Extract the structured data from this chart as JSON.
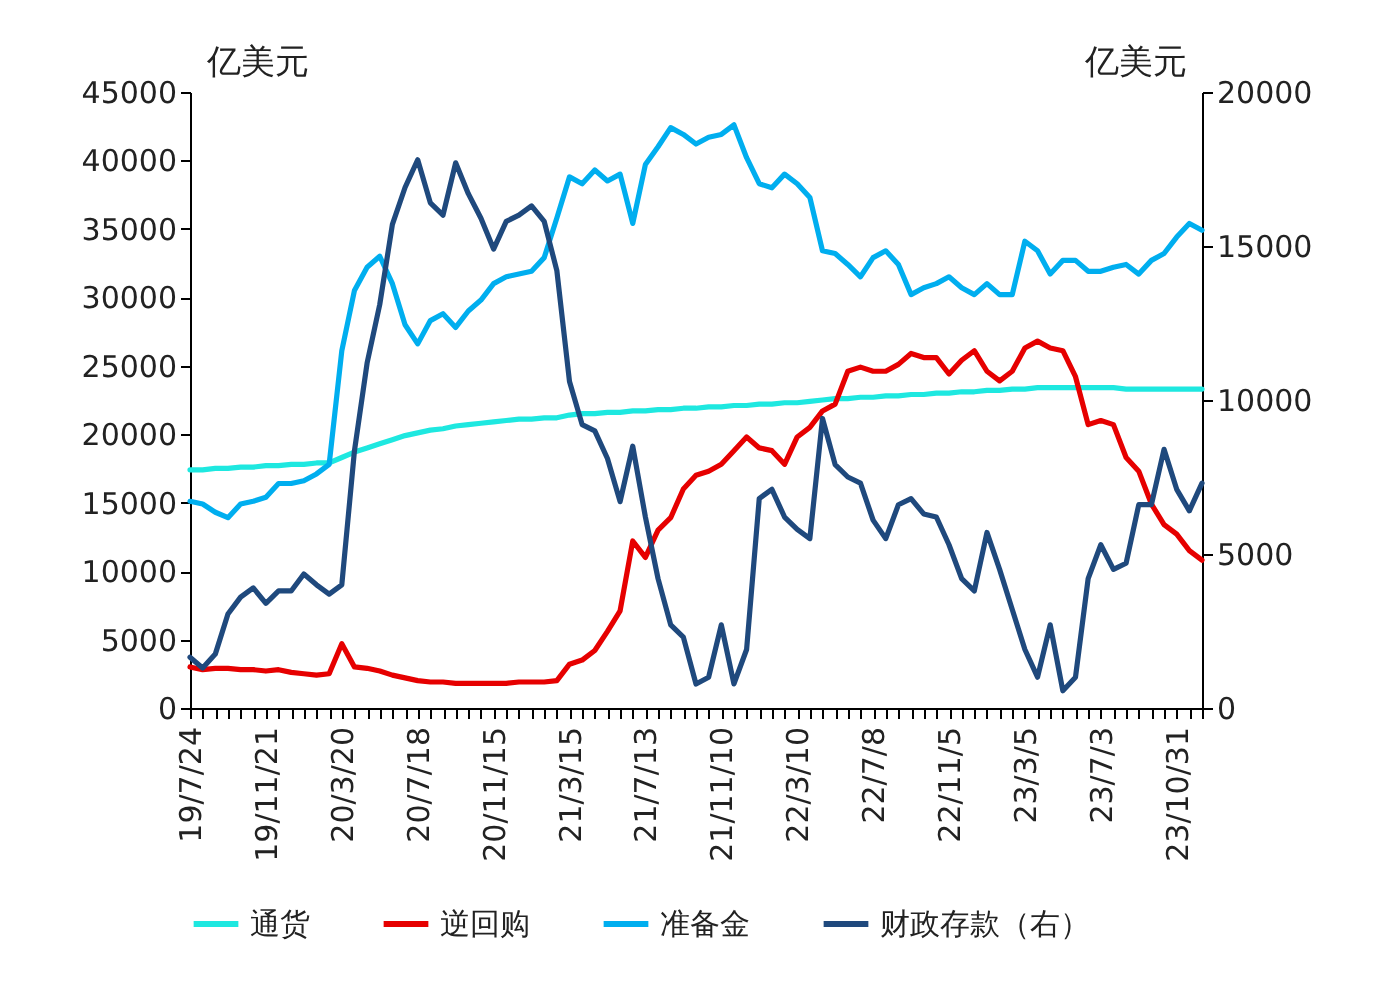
{
  "chart_data": {
    "type": "line",
    "ylabel": "亿美元",
    "y2label": "亿美元",
    "categories": [
      "19/7/24",
      null,
      null,
      null,
      null,
      null,
      "19/11/21",
      null,
      null,
      null,
      null,
      null,
      "20/3/20",
      null,
      null,
      null,
      null,
      null,
      "20/7/18",
      null,
      null,
      null,
      null,
      null,
      "20/11/15",
      null,
      null,
      null,
      null,
      null,
      "21/3/15",
      null,
      null,
      null,
      null,
      null,
      "21/7/13",
      null,
      null,
      null,
      null,
      null,
      "21/11/10",
      null,
      null,
      null,
      null,
      null,
      "22/3/10",
      null,
      null,
      null,
      null,
      null,
      "22/7/8",
      null,
      null,
      null,
      null,
      null,
      "22/11/5",
      null,
      null,
      null,
      null,
      null,
      "23/3/5",
      null,
      null,
      null,
      null,
      null,
      "23/7/3",
      null,
      null,
      null,
      null,
      null,
      "23/10/31",
      null,
      null
    ],
    "ylim": [
      0,
      45000
    ],
    "yticks": [
      0,
      5000,
      10000,
      15000,
      20000,
      25000,
      30000,
      35000,
      40000,
      45000
    ],
    "y2lim": [
      0,
      20000
    ],
    "y2ticks": [
      0,
      5000,
      10000,
      15000,
      20000
    ],
    "grid": false,
    "legend": "bottom",
    "series": [
      {
        "name": "通货",
        "color": "#1ee8e0",
        "values": [
          17400,
          17400,
          17500,
          17500,
          17600,
          17600,
          17700,
          17700,
          17800,
          17800,
          17900,
          17900,
          18300,
          18700,
          19000,
          19300,
          19600,
          19900,
          20100,
          20300,
          20400,
          20600,
          20700,
          20800,
          20900,
          21000,
          21100,
          21100,
          21200,
          21200,
          21400,
          21500,
          21500,
          21600,
          21600,
          21700,
          21700,
          21800,
          21800,
          21900,
          21900,
          22000,
          22000,
          22100,
          22100,
          22200,
          22200,
          22300,
          22300,
          22400,
          22500,
          22600,
          22600,
          22700,
          22700,
          22800,
          22800,
          22900,
          22900,
          23000,
          23000,
          23100,
          23100,
          23200,
          23200,
          23300,
          23300,
          23400,
          23400,
          23400,
          23400,
          23400,
          23400,
          23400,
          23300,
          23300,
          23300,
          23300,
          23300,
          23300,
          23300
        ]
      },
      {
        "name": "逆回购",
        "color": "#e60000",
        "values": [
          3000,
          2800,
          2900,
          2900,
          2800,
          2800,
          2700,
          2800,
          2600,
          2500,
          2400,
          2500,
          4700,
          3000,
          2900,
          2700,
          2400,
          2200,
          2000,
          1900,
          1900,
          1800,
          1800,
          1800,
          1800,
          1800,
          1900,
          1900,
          1900,
          2000,
          3200,
          3500,
          4200,
          5600,
          7100,
          12200,
          11000,
          13000,
          13900,
          16000,
          17000,
          17300,
          17800,
          18800,
          19800,
          19000,
          18800,
          17800,
          19800,
          20500,
          21700,
          22200,
          24600,
          24900,
          24600,
          24600,
          25100,
          25900,
          25600,
          25600,
          24400,
          25400,
          26100,
          24600,
          23900,
          24600,
          26300,
          26800,
          26300,
          26100,
          24200,
          20700,
          21000,
          20700,
          18300,
          17300,
          14900,
          13400,
          12700,
          11500,
          10800
        ]
      },
      {
        "name": "准备金",
        "color": "#00aeef",
        "values": [
          15100,
          14900,
          14300,
          13900,
          14900,
          15100,
          15400,
          16400,
          16400,
          16600,
          17100,
          17800,
          26100,
          30500,
          32200,
          33000,
          31000,
          28000,
          26600,
          28300,
          28800,
          27800,
          29000,
          29800,
          31000,
          31500,
          31700,
          31900,
          32900,
          35800,
          38800,
          38300,
          39300,
          38500,
          39000,
          35400,
          39700,
          41000,
          42400,
          41900,
          41200,
          41700,
          41900,
          42600,
          40200,
          38300,
          38000,
          39000,
          38300,
          37300,
          33400,
          33200,
          32400,
          31500,
          32900,
          33400,
          32400,
          30200,
          30700,
          31000,
          31500,
          30700,
          30200,
          31000,
          30200,
          30200,
          34100,
          33400,
          31700,
          32700,
          32700,
          31900,
          31900,
          32200,
          32400,
          31700,
          32700,
          33200,
          34400,
          35400,
          34900
        ]
      },
      {
        "name": "财政存款（右）",
        "color": "#1f497d",
        "axis": "y2",
        "values": [
          1650,
          1300,
          1750,
          3050,
          3600,
          3900,
          3400,
          3800,
          3800,
          4350,
          4000,
          3700,
          4000,
          8350,
          11200,
          13100,
          15700,
          16900,
          17800,
          16400,
          16000,
          17700,
          16700,
          15900,
          14900,
          15800,
          16000,
          16300,
          15800,
          14200,
          10600,
          9200,
          9000,
          8100,
          6700,
          8500,
          6200,
          4200,
          2700,
          2300,
          780,
          1000,
          2700,
          780,
          1900,
          6800,
          7100,
          6200,
          5800,
          5500,
          9400,
          7900,
          7500,
          7300,
          6100,
          5500,
          6600,
          6800,
          6300,
          6200,
          5300,
          4200,
          3800,
          5700,
          4500,
          3200,
          1900,
          1000,
          2700,
          560,
          1000,
          4200,
          5300,
          4500,
          4700,
          6600,
          6600,
          8400,
          7100,
          6400,
          7300
        ]
      }
    ]
  }
}
